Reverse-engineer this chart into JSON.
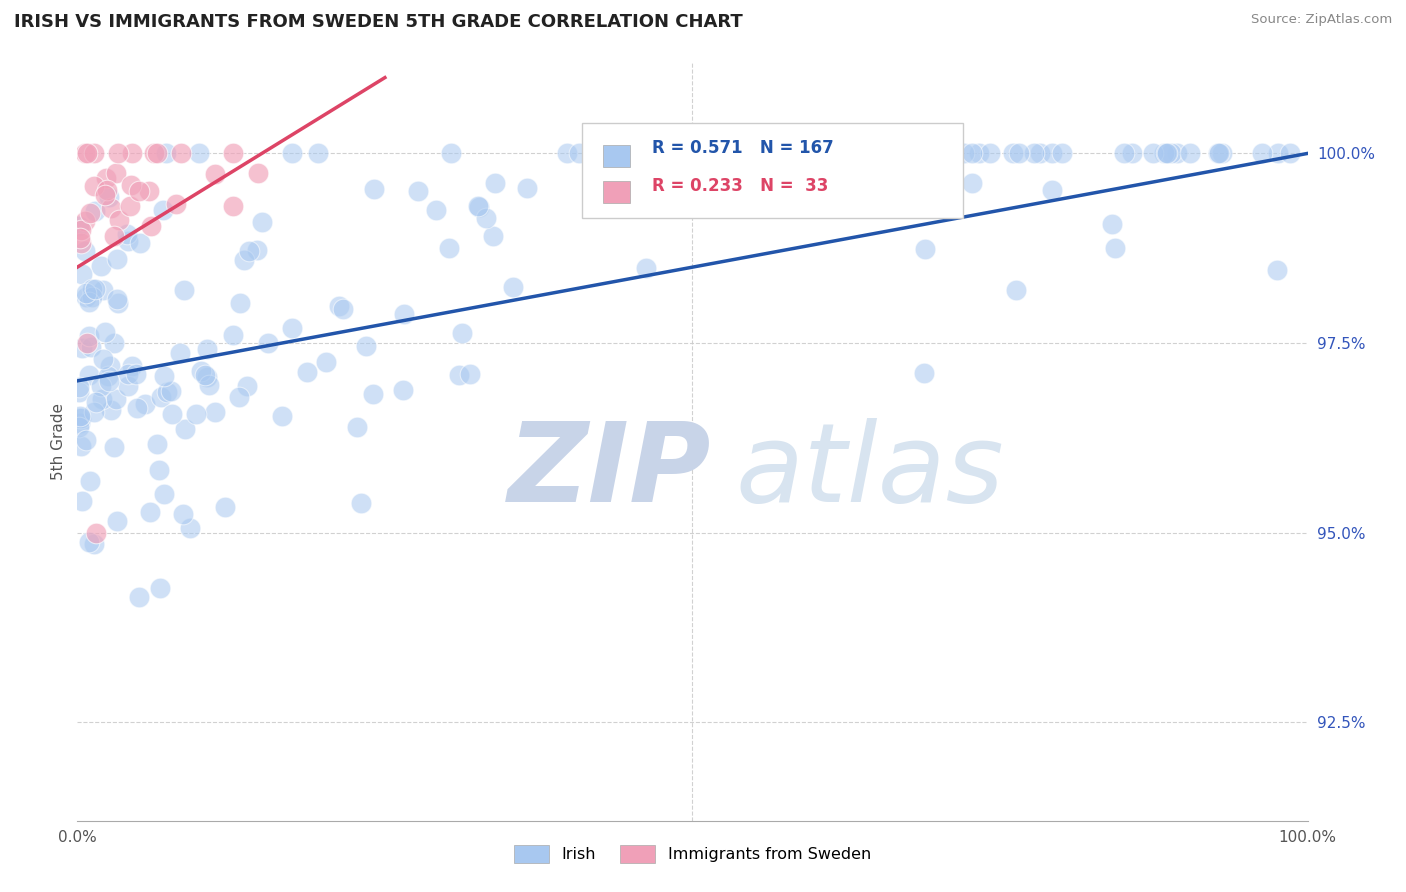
{
  "title": "IRISH VS IMMIGRANTS FROM SWEDEN 5TH GRADE CORRELATION CHART",
  "source": "Source: ZipAtlas.com",
  "ylabel": "5th Grade",
  "xlim": [
    0.0,
    100.0
  ],
  "ylim": [
    91.2,
    101.2
  ],
  "yticks": [
    92.5,
    95.0,
    97.5,
    100.0
  ],
  "ytick_labels": [
    "92.5%",
    "95.0%",
    "97.5%",
    "100.0%"
  ],
  "blue_R": 0.571,
  "blue_N": 167,
  "pink_R": 0.233,
  "pink_N": 33,
  "blue_color": "#A8C8F0",
  "pink_color": "#F0A0B8",
  "blue_line_color": "#2255AA",
  "pink_line_color": "#DD4466",
  "background_color": "#FFFFFF",
  "grid_color": "#CCCCCC",
  "watermark_zip_color": "#C8D4E8",
  "watermark_atlas_color": "#D8E4F0",
  "legend_blue_color": "#2255AA",
  "legend_pink_color": "#DD4466",
  "legend_n_color": "#228822"
}
